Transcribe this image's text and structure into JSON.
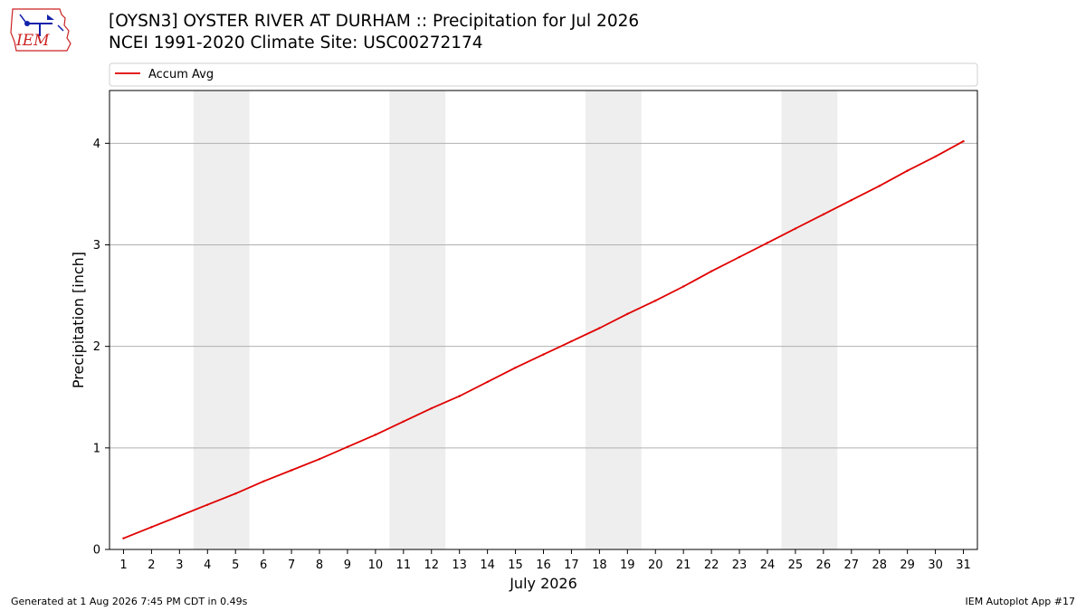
{
  "header": {
    "title_line1": "[OYSN3] OYSTER RIVER  AT DURHAM :: Precipitation for Jul 2026",
    "title_line2": "NCEI 1991-2020 Climate Site: USC00272174",
    "logo_text": "IEM"
  },
  "footer": {
    "generated": "Generated at 1 Aug 2026 7:45 PM CDT in 0.49s",
    "app": "IEM Autoplot App #17"
  },
  "colors": {
    "line": "#e00000",
    "weekend_band": "#eeeeee",
    "grid": "#b0b0b0",
    "logo_red": "#cc2222",
    "logo_blue": "#1122aa"
  },
  "chart_data": {
    "type": "line",
    "xlabel": "July 2026",
    "ylabel": "Precipitation [inch]",
    "xlim": [
      0.5,
      31.5
    ],
    "ylim": [
      0,
      4.52
    ],
    "grid": "y",
    "legend": "top",
    "x": [
      1,
      2,
      3,
      4,
      5,
      6,
      7,
      8,
      9,
      10,
      11,
      12,
      13,
      14,
      15,
      16,
      17,
      18,
      19,
      20,
      21,
      22,
      23,
      24,
      25,
      26,
      27,
      28,
      29,
      30,
      31
    ],
    "yticks": [
      0,
      1,
      2,
      3,
      4
    ],
    "weekend_bands": [
      [
        3.5,
        5.5
      ],
      [
        10.5,
        12.5
      ],
      [
        17.5,
        19.5
      ],
      [
        24.5,
        26.5
      ]
    ],
    "series": [
      {
        "name": "Accum Avg",
        "values": [
          0.11,
          0.22,
          0.33,
          0.44,
          0.55,
          0.67,
          0.78,
          0.89,
          1.01,
          1.13,
          1.26,
          1.39,
          1.51,
          1.65,
          1.79,
          1.92,
          2.05,
          2.18,
          2.32,
          2.45,
          2.59,
          2.74,
          2.88,
          3.02,
          3.16,
          3.3,
          3.44,
          3.58,
          3.73,
          3.87,
          4.02
        ]
      }
    ]
  }
}
